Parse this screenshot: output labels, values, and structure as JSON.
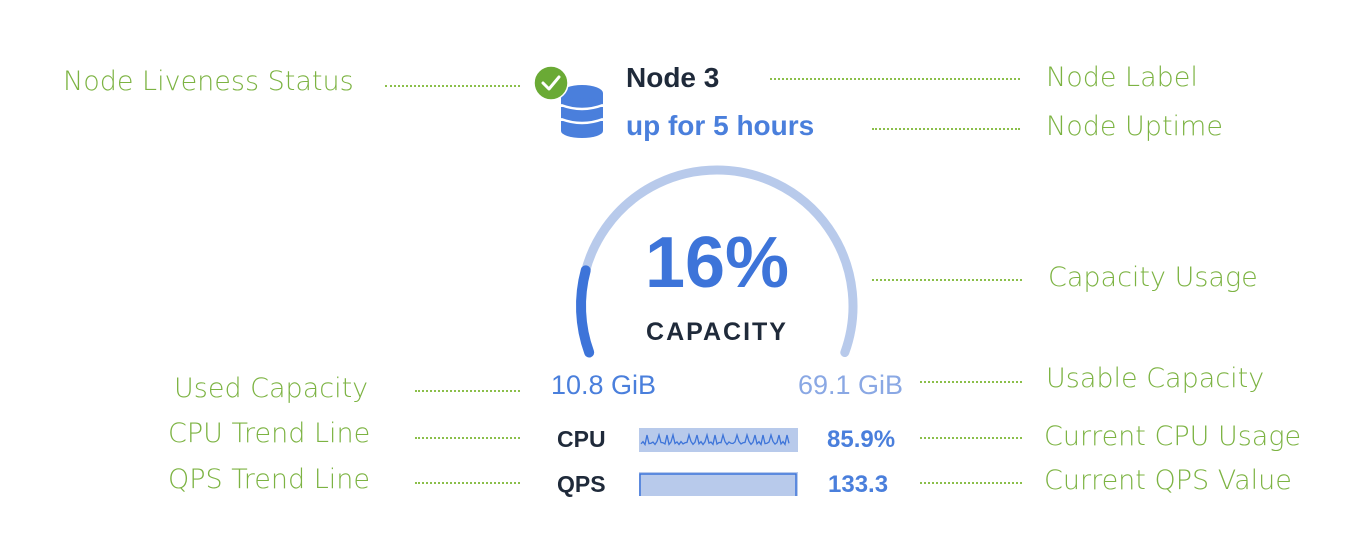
{
  "node": {
    "label": "Node 3",
    "uptime": "up for 5 hours",
    "liveness_icon": "check-circle-icon",
    "node_icon": "database-icon",
    "capacity_percent": 16,
    "capacity_percent_text": "16%",
    "capacity_label": "CAPACITY",
    "used_capacity": "10.8 GiB",
    "usable_capacity": "69.1 GiB",
    "cpu_label": "CPU",
    "cpu_value": "85.9%",
    "qps_label": "QPS",
    "qps_value": "133.3"
  },
  "annotations": {
    "liveness": "Node Liveness Status",
    "label": "Node Label",
    "uptime": "Node Uptime",
    "capacity_usage": "Capacity Usage",
    "used_capacity": "Used Capacity",
    "usable_capacity": "Usable Capacity",
    "cpu_trend": "CPU Trend Line",
    "cpu_current": "Current CPU Usage",
    "qps_trend": "QPS Trend Line",
    "qps_current": "Current QPS Value"
  },
  "colors": {
    "accent": "#3d74d9",
    "annotation": "#7cb342",
    "live": "#6aaa35",
    "gauge_track": "#b8caeb"
  }
}
